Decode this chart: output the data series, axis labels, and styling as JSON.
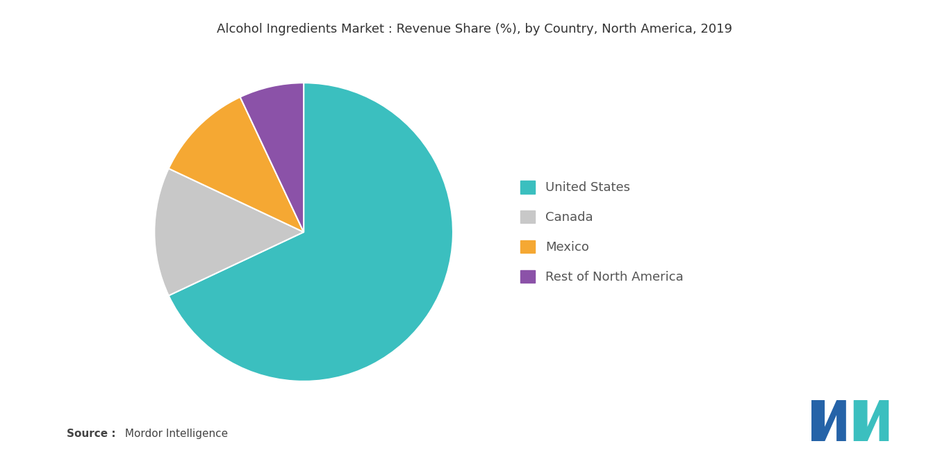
{
  "title": "Alcohol Ingredients Market : Revenue Share (%), by Country, North America, 2019",
  "labels": [
    "United States",
    "Canada",
    "Mexico",
    "Rest of North America"
  ],
  "values": [
    68,
    14,
    11,
    7
  ],
  "colors": [
    "#3bbfbf",
    "#c8c8c8",
    "#f5a833",
    "#8b52a8"
  ],
  "background_color": "#ffffff",
  "title_fontsize": 13,
  "legend_fontsize": 13,
  "source_bold": "Source :",
  "source_rest": " Mordor Intelligence",
  "startangle": 90
}
